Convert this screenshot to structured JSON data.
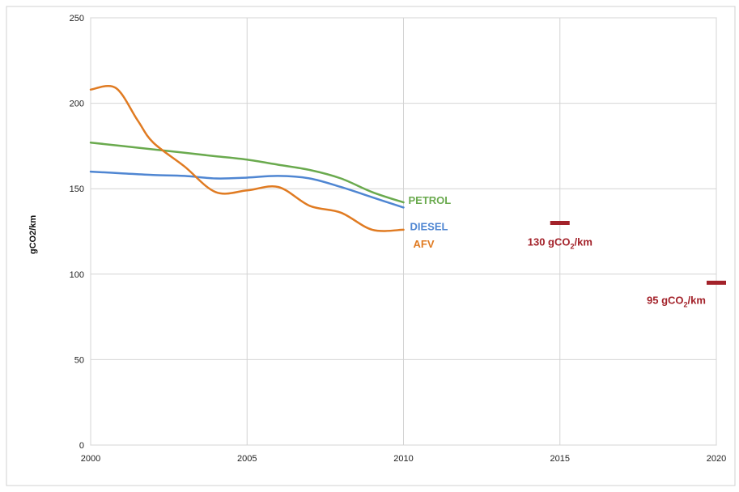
{
  "chart_data": {
    "type": "line",
    "title": "",
    "xlabel": "",
    "ylabel": "gCO2/km",
    "xlim": [
      2000,
      2020
    ],
    "ylim": [
      0,
      250
    ],
    "x_ticks": [
      "2000",
      "2005",
      "2010",
      "2015",
      "2020"
    ],
    "y_ticks": [
      "0",
      "50",
      "100",
      "150",
      "200",
      "250"
    ],
    "grid": true,
    "legend": "inline labels at line ends",
    "series": [
      {
        "name": "PETROL",
        "color": "#6aaa4e",
        "x": [
          2000,
          2001,
          2002,
          2003,
          2004,
          2005,
          2006,
          2007,
          2008,
          2009,
          2010
        ],
        "y": [
          177,
          175,
          173,
          171,
          169,
          167,
          164,
          161,
          156,
          148,
          142
        ]
      },
      {
        "name": "DIESEL",
        "color": "#4f86d2",
        "x": [
          2000,
          2001,
          2002,
          2003,
          2004,
          2005,
          2006,
          2007,
          2008,
          2009,
          2010
        ],
        "y": [
          160,
          159,
          158,
          157.5,
          156,
          156.5,
          157.5,
          156,
          151,
          145,
          139
        ]
      },
      {
        "name": "AFV",
        "color": "#e07b22",
        "x": [
          2000,
          2000.8,
          2001.5,
          2002,
          2003,
          2004,
          2005,
          2006,
          2007,
          2008,
          2009,
          2010
        ],
        "y": [
          208,
          209,
          190,
          177,
          163,
          148,
          149,
          151,
          140,
          136,
          126,
          126
        ]
      }
    ],
    "targets": [
      {
        "x": 2015,
        "y": 130,
        "label_prefix": "130 gCO",
        "label_sub": "2",
        "label_suffix": "/km",
        "color": "#a3222a"
      },
      {
        "x": 2020,
        "y": 95,
        "label_prefix": "95 gCO",
        "label_sub": "2",
        "label_suffix": "/km",
        "color": "#a3222a"
      }
    ]
  }
}
